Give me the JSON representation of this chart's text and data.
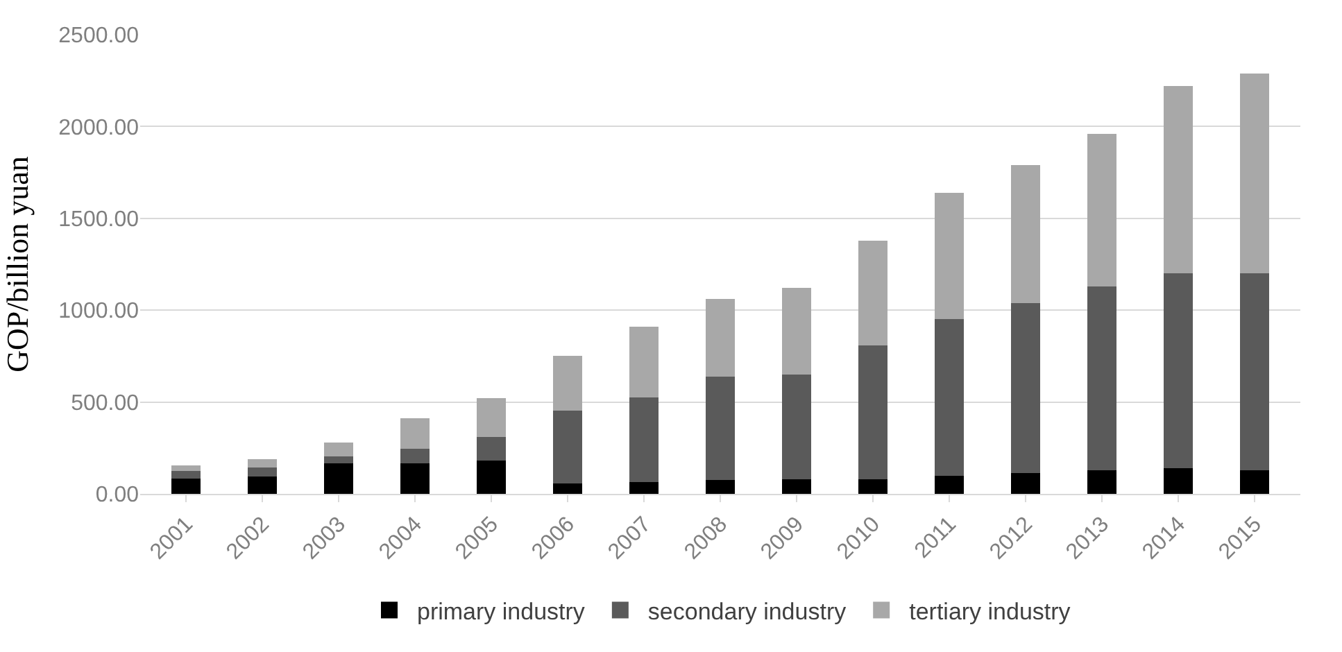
{
  "chart_data": {
    "type": "bar",
    "stacked": true,
    "ylabel": "GOP/billion yuan",
    "categories": [
      "2001",
      "2002",
      "2003",
      "2004",
      "2005",
      "2006",
      "2007",
      "2008",
      "2009",
      "2010",
      "2011",
      "2012",
      "2013",
      "2014",
      "2015"
    ],
    "series": [
      {
        "name": "primary industry",
        "color": "#000000",
        "values": [
          85,
          95,
          165,
          165,
          180,
          55,
          65,
          75,
          80,
          80,
          100,
          115,
          130,
          140,
          130
        ]
      },
      {
        "name": "secondary industry",
        "color": "#5a5a5a",
        "values": [
          40,
          50,
          40,
          80,
          130,
          400,
          460,
          565,
          570,
          730,
          850,
          925,
          1000,
          1060,
          1070
        ]
      },
      {
        "name": "tertiary industry",
        "color": "#a8a8a8",
        "values": [
          30,
          45,
          75,
          165,
          210,
          295,
          385,
          420,
          470,
          570,
          690,
          750,
          830,
          1020,
          1090
        ]
      }
    ],
    "ylim": [
      0,
      2500
    ],
    "yticks": [
      {
        "value": 0,
        "label": "0.00"
      },
      {
        "value": 500,
        "label": "500.00"
      },
      {
        "value": 1000,
        "label": "1000.00"
      },
      {
        "value": 1500,
        "label": "1500.00"
      },
      {
        "value": 2000,
        "label": "2000.00"
      },
      {
        "value": 2500,
        "label": "2500.00"
      }
    ],
    "grid": "y",
    "legend": "bottom"
  }
}
